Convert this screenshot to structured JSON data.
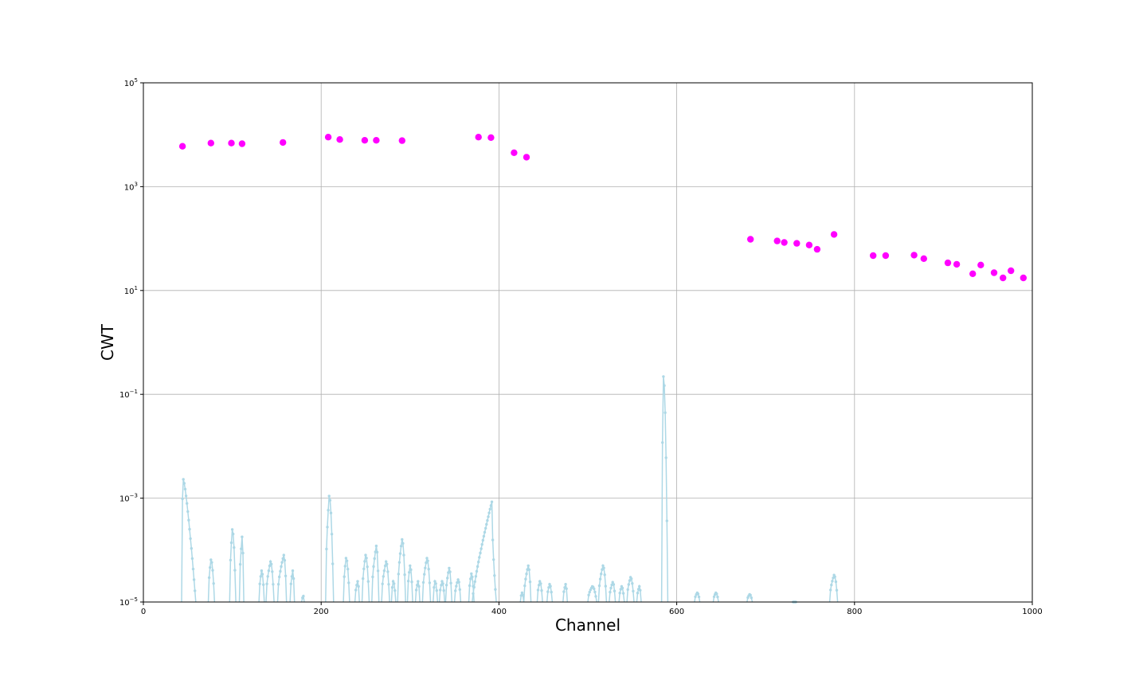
{
  "chart_data": {
    "type": "scatter",
    "xlabel": "Channel",
    "ylabel": "CWT",
    "xlim": [
      0,
      1000
    ],
    "ylim": [
      1e-05,
      100000.0
    ],
    "yscale": "log",
    "grid": true,
    "x_ticks": [
      0,
      200,
      400,
      600,
      800,
      1000
    ],
    "y_ticks": [
      {
        "value": 1e-05,
        "base": "10",
        "exp": "−5"
      },
      {
        "value": 0.001,
        "base": "10",
        "exp": "−3"
      },
      {
        "value": 0.1,
        "base": "10",
        "exp": "−1"
      },
      {
        "value": 10,
        "base": "10",
        "exp": "1"
      },
      {
        "value": 1000,
        "base": "10",
        "exp": "3"
      },
      {
        "value": 100000,
        "base": "10",
        "exp": "5"
      }
    ],
    "colors": {
      "peaks": "#ff00ff",
      "cwt": "#add8e6"
    },
    "series": [
      {
        "kind": "markers",
        "color": "#ff00ff",
        "points": [
          [
            44,
            6000
          ],
          [
            76,
            6900
          ],
          [
            99,
            6900
          ],
          [
            111,
            6700
          ],
          [
            157,
            7100
          ],
          [
            208,
            9000
          ],
          [
            221,
            8100
          ],
          [
            249,
            7800
          ],
          [
            262,
            7800
          ],
          [
            291,
            7700
          ],
          [
            377,
            9000
          ],
          [
            391,
            8800
          ],
          [
            417,
            4500
          ],
          [
            431,
            3700
          ],
          [
            683,
            97
          ],
          [
            713,
            90
          ],
          [
            721,
            84
          ],
          [
            735,
            81
          ],
          [
            749,
            75
          ],
          [
            758,
            62
          ],
          [
            777,
            120
          ],
          [
            821,
            47
          ],
          [
            835,
            47
          ],
          [
            867,
            48
          ],
          [
            878,
            41
          ],
          [
            905,
            34
          ],
          [
            915,
            32
          ],
          [
            933,
            21
          ],
          [
            942,
            31
          ],
          [
            957,
            22
          ],
          [
            967,
            17.5
          ],
          [
            976,
            24
          ],
          [
            990,
            17.5
          ]
        ]
      },
      {
        "kind": "peaks",
        "color": "#add8e6",
        "peaks": [
          {
            "x0": 43,
            "x1": 59,
            "apex": 45,
            "peak": 0.0023,
            "shape": "decay"
          },
          {
            "x0": 73,
            "x1": 80,
            "apex": 76,
            "peak": 6.5e-05
          },
          {
            "x0": 97,
            "x1": 104,
            "apex": 100,
            "peak": 0.00025
          },
          {
            "x0": 108,
            "x1": 113,
            "apex": 111,
            "peak": 0.00018
          },
          {
            "x0": 130,
            "x1": 136,
            "apex": 133,
            "peak": 4e-05
          },
          {
            "x0": 138,
            "x1": 147,
            "apex": 143,
            "peak": 6e-05
          },
          {
            "x0": 151,
            "x1": 161,
            "apex": 158,
            "peak": 8e-05
          },
          {
            "x0": 165,
            "x1": 170,
            "apex": 168,
            "peak": 4e-05
          },
          {
            "x0": 178,
            "x1": 181,
            "apex": 180,
            "peak": 1.3e-05
          },
          {
            "x0": 205,
            "x1": 214,
            "apex": 209,
            "peak": 0.0011
          },
          {
            "x0": 225,
            "x1": 232,
            "apex": 228,
            "peak": 7e-05
          },
          {
            "x0": 238,
            "x1": 243,
            "apex": 241,
            "peak": 2.5e-05
          },
          {
            "x0": 246,
            "x1": 254,
            "apex": 250,
            "peak": 8e-05
          },
          {
            "x0": 257,
            "x1": 265,
            "apex": 262,
            "peak": 0.00012
          },
          {
            "x0": 268,
            "x1": 277,
            "apex": 273,
            "peak": 6e-05
          },
          {
            "x0": 279,
            "x1": 284,
            "apex": 281,
            "peak": 2.5e-05
          },
          {
            "x0": 286,
            "x1": 295,
            "apex": 291,
            "peak": 0.00016
          },
          {
            "x0": 297,
            "x1": 303,
            "apex": 300,
            "peak": 5e-05
          },
          {
            "x0": 306,
            "x1": 311,
            "apex": 309,
            "peak": 2.5e-05
          },
          {
            "x0": 314,
            "x1": 323,
            "apex": 319,
            "peak": 7e-05
          },
          {
            "x0": 326,
            "x1": 331,
            "apex": 328,
            "peak": 2.5e-05
          },
          {
            "x0": 333,
            "x1": 339,
            "apex": 336,
            "peak": 2.5e-05
          },
          {
            "x0": 340,
            "x1": 347,
            "apex": 344,
            "peak": 4.5e-05
          },
          {
            "x0": 350,
            "x1": 357,
            "apex": 354,
            "peak": 2.7e-05
          },
          {
            "x0": 366,
            "x1": 372,
            "apex": 369,
            "peak": 3.5e-05
          },
          {
            "x0": 370,
            "x1": 397,
            "apex": 392,
            "peak": 0.00085,
            "shape": "ramp"
          },
          {
            "x0": 424,
            "x1": 428,
            "apex": 426,
            "peak": 1.5e-05
          },
          {
            "x0": 428,
            "x1": 436,
            "apex": 433,
            "peak": 5e-05
          },
          {
            "x0": 443,
            "x1": 449,
            "apex": 446,
            "peak": 2.5e-05
          },
          {
            "x0": 454,
            "x1": 460,
            "apex": 457,
            "peak": 2.2e-05
          },
          {
            "x0": 472,
            "x1": 477,
            "apex": 475,
            "peak": 2.2e-05
          },
          {
            "x0": 500,
            "x1": 510,
            "apex": 505,
            "peak": 2e-05
          },
          {
            "x0": 512,
            "x1": 521,
            "apex": 517,
            "peak": 5e-05
          },
          {
            "x0": 524,
            "x1": 531,
            "apex": 528,
            "peak": 2.4e-05
          },
          {
            "x0": 535,
            "x1": 541,
            "apex": 538,
            "peak": 2e-05
          },
          {
            "x0": 544,
            "x1": 552,
            "apex": 548,
            "peak": 3e-05
          },
          {
            "x0": 555,
            "x1": 560,
            "apex": 558,
            "peak": 2e-05
          },
          {
            "x0": 583,
            "x1": 590,
            "apex": 585,
            "peak": 0.22
          },
          {
            "x0": 620,
            "x1": 626,
            "apex": 623,
            "peak": 1.5e-05
          },
          {
            "x0": 641,
            "x1": 647,
            "apex": 644,
            "peak": 1.5e-05
          },
          {
            "x0": 679,
            "x1": 685,
            "apex": 682,
            "peak": 1.4e-05
          },
          {
            "x0": 730,
            "x1": 735,
            "apex": 733,
            "peak": 1e-05
          },
          {
            "x0": 772,
            "x1": 781,
            "apex": 777,
            "peak": 3.3e-05
          }
        ]
      }
    ]
  }
}
